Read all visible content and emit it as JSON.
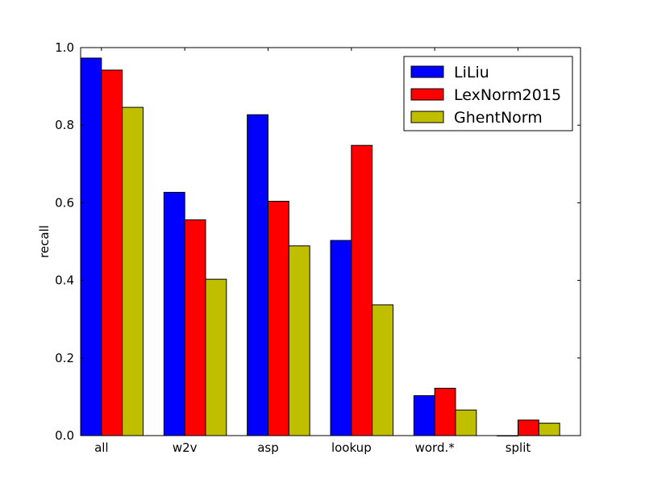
{
  "chart_data": {
    "type": "bar",
    "title": "",
    "xlabel": "",
    "ylabel": "recall",
    "ylim": [
      0,
      1.0
    ],
    "yticks": [
      "0.0",
      "0.2",
      "0.4",
      "0.6",
      "0.8",
      "1.0"
    ],
    "categories": [
      "all",
      "w2v",
      "asp",
      "lookup",
      "word.*",
      "split"
    ],
    "series": [
      {
        "name": "LiLiu",
        "color": "#0000ff",
        "values": [
          0.973,
          0.627,
          0.827,
          0.503,
          0.103,
          0.0
        ]
      },
      {
        "name": "LexNorm2015",
        "color": "#ff0000",
        "values": [
          0.942,
          0.556,
          0.604,
          0.748,
          0.122,
          0.04
        ]
      },
      {
        "name": "GhentNorm",
        "color": "#bfbf00",
        "values": [
          0.846,
          0.403,
          0.489,
          0.337,
          0.066,
          0.032
        ]
      }
    ],
    "legend_position": "top-right",
    "grid": false
  }
}
